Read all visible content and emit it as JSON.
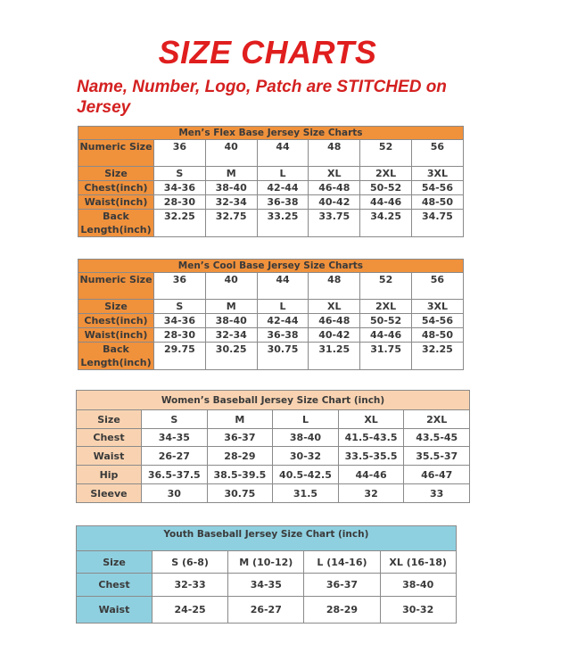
{
  "title": "SIZE CHARTS",
  "subtitle": "Name, Number, Logo, Patch are STITCHED on Jersey",
  "colors": {
    "title_red": "#e01e1e",
    "mens_orange": "#f0913c",
    "womens_peach": "#f9d3b1",
    "youth_blue": "#8fd0e0"
  },
  "tables": [
    {
      "title": "Men’s Flex Base Jersey Size Charts",
      "rows": [
        {
          "label": "Numeric Size",
          "values": [
            "36",
            "40",
            "44",
            "48",
            "52",
            "56"
          ]
        },
        {
          "label": "Size",
          "values": [
            "S",
            "M",
            "L",
            "XL",
            "2XL",
            "3XL"
          ]
        },
        {
          "label": "Chest(inch)",
          "values": [
            "34-36",
            "38-40",
            "42-44",
            "46-48",
            "50-52",
            "54-56"
          ]
        },
        {
          "label": "Waist(inch)",
          "values": [
            "28-30",
            "32-34",
            "36-38",
            "40-42",
            "44-46",
            "48-50"
          ]
        },
        {
          "label": "Back Length(inch)",
          "values": [
            "32.25",
            "32.75",
            "33.25",
            "33.75",
            "34.25",
            "34.75"
          ]
        }
      ]
    },
    {
      "title": "Men’s Cool Base Jersey Size Charts",
      "rows": [
        {
          "label": "Numeric Size",
          "values": [
            "36",
            "40",
            "44",
            "48",
            "52",
            "56"
          ]
        },
        {
          "label": "Size",
          "values": [
            "S",
            "M",
            "L",
            "XL",
            "2XL",
            "3XL"
          ]
        },
        {
          "label": "Chest(inch)",
          "values": [
            "34-36",
            "38-40",
            "42-44",
            "46-48",
            "50-52",
            "54-56"
          ]
        },
        {
          "label": "Waist(inch)",
          "values": [
            "28-30",
            "32-34",
            "36-38",
            "40-42",
            "44-46",
            "48-50"
          ]
        },
        {
          "label": "Back Length(inch)",
          "values": [
            "29.75",
            "30.25",
            "30.75",
            "31.25",
            "31.75",
            "32.25"
          ]
        }
      ]
    },
    {
      "title": "Women’s Baseball Jersey Size Chart (inch)",
      "rows": [
        {
          "label": "Size",
          "values": [
            "S",
            "M",
            "L",
            "XL",
            "2XL"
          ]
        },
        {
          "label": "Chest",
          "values": [
            "34-35",
            "36-37",
            "38-40",
            "41.5-43.5",
            "43.5-45"
          ]
        },
        {
          "label": "Waist",
          "values": [
            "26-27",
            "28-29",
            "30-32",
            "33.5-35.5",
            "35.5-37"
          ]
        },
        {
          "label": "Hip",
          "values": [
            "36.5-37.5",
            "38.5-39.5",
            "40.5-42.5",
            "44-46",
            "46-47"
          ]
        },
        {
          "label": "Sleeve",
          "values": [
            "30",
            "30.75",
            "31.5",
            "32",
            "33"
          ]
        }
      ]
    },
    {
      "title": "Youth Baseball Jersey Size Chart (inch)",
      "rows": [
        {
          "label": "Size",
          "values": [
            "S (6-8)",
            "M (10-12)",
            "L (14-16)",
            "XL (16-18)"
          ]
        },
        {
          "label": "Chest",
          "values": [
            "32-33",
            "34-35",
            "36-37",
            "38-40"
          ]
        },
        {
          "label": "Waist",
          "values": [
            "24-25",
            "26-27",
            "28-29",
            "30-32"
          ]
        }
      ]
    }
  ]
}
